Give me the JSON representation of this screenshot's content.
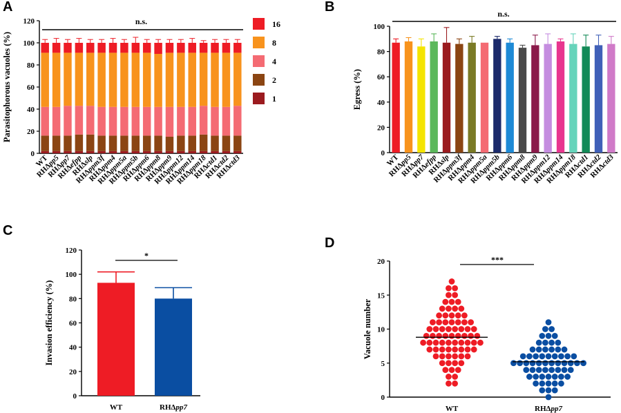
{
  "panels": {
    "A": "A",
    "B": "B",
    "C": "C",
    "D": "D"
  },
  "chart_data": [
    {
      "id": "A",
      "type": "bar",
      "stacked": true,
      "title": "",
      "xlabel": "",
      "ylabel": "Parasitophorous vacuoles (%)",
      "ylim": [
        0,
        120
      ],
      "yticks": [
        0,
        20,
        40,
        60,
        80,
        100,
        120
      ],
      "annotation": "n.s.",
      "categories": [
        "WT",
        "RHΔpp5",
        "RHΔpp7",
        "RHΔefpp",
        "RHΔslp",
        "RHΔppm3f",
        "RHΔppm4",
        "RHΔppm5a",
        "RHΔppm5b",
        "RHΔppm6",
        "RHΔppm8",
        "RHΔppm9",
        "RHΔppm12",
        "RHΔppm14",
        "RHΔppm18",
        "RHΔctd1",
        "RHΔctd2",
        "RHΔctd3"
      ],
      "legend": {
        "position": "right",
        "title": ""
      },
      "series": [
        {
          "name": "1",
          "color": "#9b1b1f",
          "values": [
            2,
            2,
            2,
            2,
            2,
            2,
            2,
            2,
            2,
            2,
            2,
            2,
            2,
            2,
            2,
            2,
            2,
            2
          ]
        },
        {
          "name": "2",
          "color": "#8b4513",
          "values": [
            14,
            14,
            14,
            15,
            15,
            14,
            14,
            14,
            14,
            14,
            14,
            13,
            14,
            14,
            15,
            14,
            14,
            14
          ]
        },
        {
          "name": "4",
          "color": "#f46b73",
          "values": [
            26,
            26,
            27,
            26,
            26,
            26,
            26,
            26,
            26,
            26,
            26,
            27,
            26,
            26,
            26,
            26,
            26,
            27
          ]
        },
        {
          "name": "8",
          "color": "#f8931d",
          "values": [
            49,
            49,
            48,
            48,
            48,
            49,
            49,
            49,
            49,
            49,
            48,
            49,
            49,
            49,
            48,
            49,
            49,
            48
          ]
        },
        {
          "name": "16",
          "color": "#ee1c25",
          "values": [
            9,
            9,
            9,
            9,
            9,
            9,
            9,
            9,
            9,
            9,
            10,
            9,
            9,
            9,
            9,
            9,
            9,
            9
          ]
        }
      ],
      "errors": [
        3,
        4,
        3,
        4,
        3,
        3,
        4,
        3,
        5,
        3,
        3,
        3,
        3,
        4,
        2,
        3,
        3,
        3
      ]
    },
    {
      "id": "B",
      "type": "bar",
      "title": "",
      "xlabel": "",
      "ylabel": "Egress (%)",
      "ylim": [
        0,
        100
      ],
      "yticks": [
        0,
        20,
        40,
        60,
        80,
        100
      ],
      "annotation": "n.s.",
      "categories": [
        "WT",
        "RHΔpp5",
        "RHΔpp7",
        "RHΔefpp",
        "RHΔslp",
        "RHΔppm3f",
        "RHΔppm4",
        "RHΔppm5a",
        "RHΔppm5b",
        "RHΔppm6",
        "RHΔppm8",
        "RHΔppm9",
        "RHΔppm12",
        "RHΔppm14",
        "RHΔppm18",
        "RHΔctd1",
        "RHΔctd2",
        "RHΔctd3"
      ],
      "values": [
        87,
        88,
        84,
        88,
        87,
        86,
        87,
        87,
        90,
        87,
        83,
        85,
        86,
        88,
        86,
        84,
        85,
        86
      ],
      "errors": [
        3,
        3,
        6,
        6,
        12,
        4,
        5,
        0,
        2,
        3,
        2,
        8,
        8,
        2,
        8,
        9,
        8,
        6
      ],
      "colors": [
        "#ee1c25",
        "#f8931d",
        "#f4e400",
        "#5cb85c",
        "#9b1b1f",
        "#8b4513",
        "#7a7a25",
        "#f46b73",
        "#1b2a6b",
        "#1e8ad6",
        "#4a4a4a",
        "#8b1a4a",
        "#c58de0",
        "#e8368f",
        "#66d4bb",
        "#128a57",
        "#4060b8",
        "#d07ac8"
      ]
    },
    {
      "id": "C",
      "type": "bar",
      "title": "",
      "xlabel": "",
      "ylabel": "Invasion efficiency (%)",
      "ylim": [
        0,
        120
      ],
      "yticks": [
        0,
        20,
        40,
        60,
        80,
        100,
        120
      ],
      "annotation": "*",
      "categories": [
        "WT",
        "RHΔpp7"
      ],
      "values": [
        93,
        80
      ],
      "errors": [
        9,
        9
      ],
      "colors": [
        "#ee1c25",
        "#0a4ea2"
      ]
    },
    {
      "id": "D",
      "type": "scatter",
      "title": "",
      "xlabel": "",
      "ylabel": "Vacuole number",
      "ylim": [
        0,
        20
      ],
      "yticks": [
        0,
        5,
        10,
        15,
        20
      ],
      "annotation": "***",
      "categories": [
        "WT",
        "RHΔpp7"
      ],
      "colors": [
        "#ee1c25",
        "#0a4ea2"
      ],
      "means": [
        8.8,
        5.2
      ],
      "groups": [
        {
          "name": "WT",
          "counts": {
            "2": 2,
            "3": 2,
            "4": 3,
            "5": 4,
            "6": 6,
            "7": 8,
            "8": 10,
            "9": 9,
            "10": 8,
            "11": 7,
            "12": 5,
            "13": 4,
            "14": 3,
            "15": 2,
            "16": 2,
            "17": 1
          }
        },
        {
          "name": "RHΔpp7",
          "counts": {
            "0": 1,
            "1": 3,
            "2": 5,
            "3": 7,
            "4": 8,
            "5": 12,
            "6": 9,
            "7": 6,
            "8": 4,
            "9": 3,
            "10": 2,
            "11": 1
          }
        }
      ]
    }
  ]
}
